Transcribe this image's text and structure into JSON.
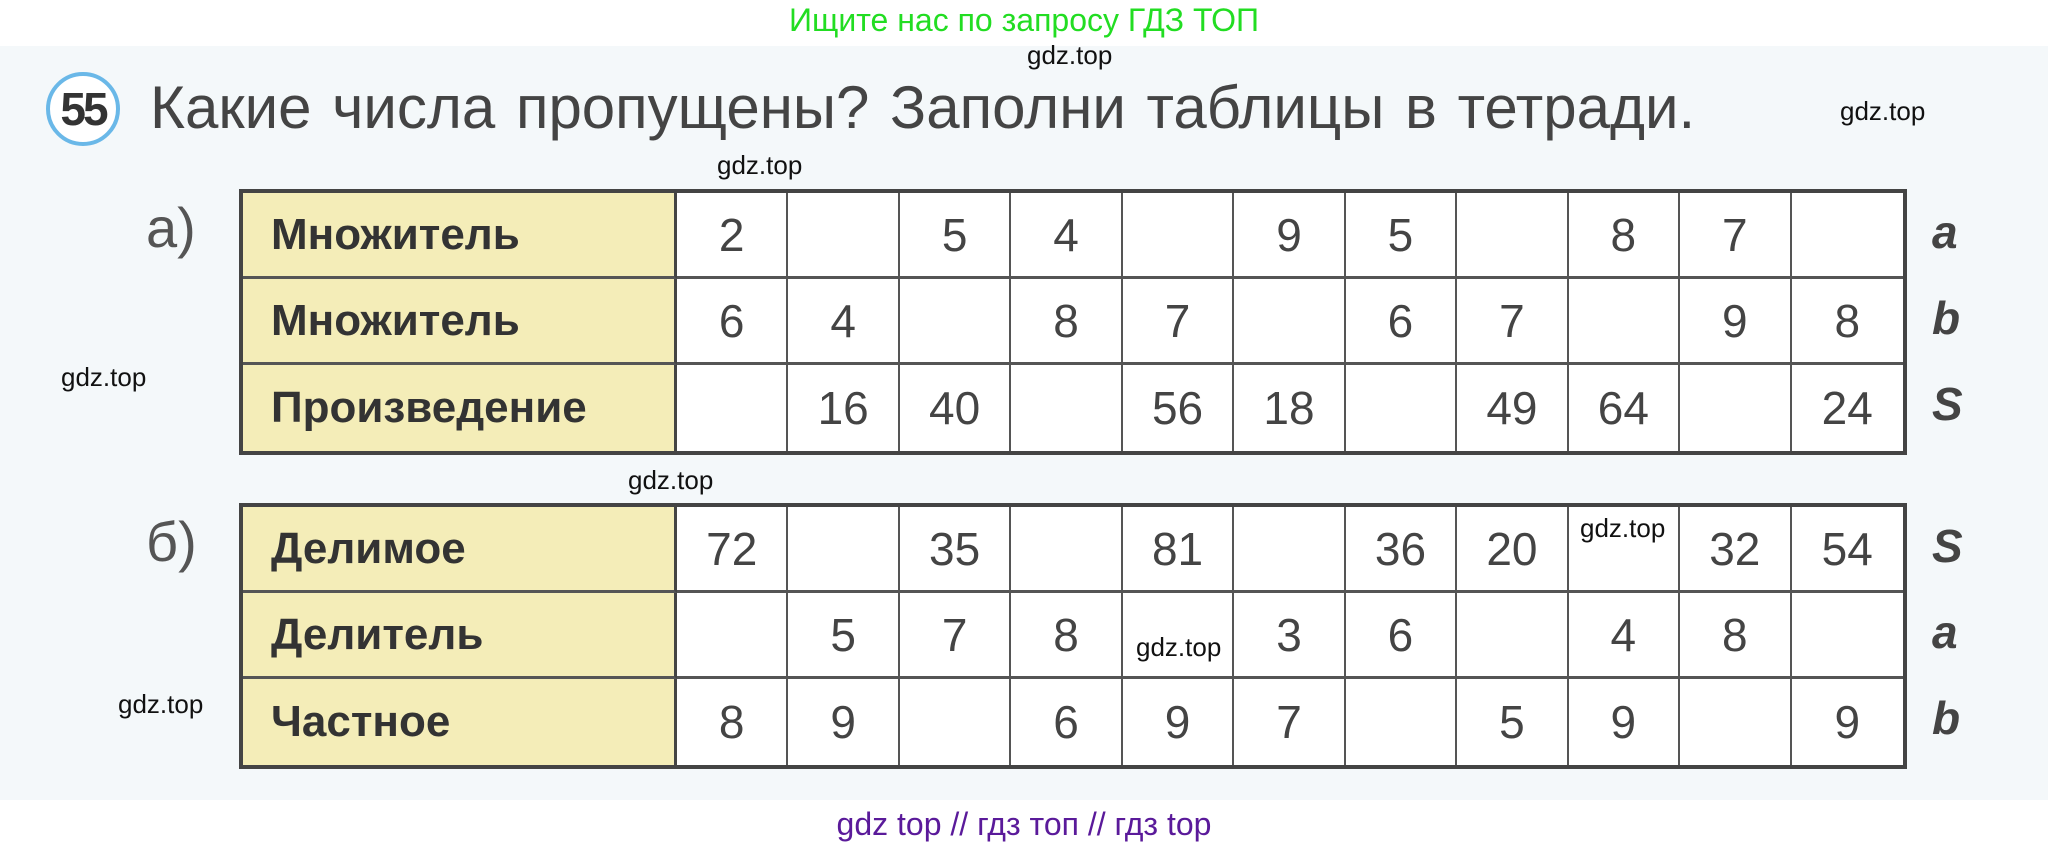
{
  "top_banner": "Ищите нас по запросу ГДЗ ТОП",
  "bottom_banner": "gdz top  //  гдз топ  //  гдз top",
  "exercise": {
    "number": "55",
    "title": "Какие числа пропущены? Заполни таблицы в тетради."
  },
  "watermarks": [
    "gdz.top",
    "gdz.top",
    "gdz.top",
    "gdz.top",
    "gdz.top",
    "gdz.top",
    "gdz.top",
    "gdz.top"
  ],
  "colors": {
    "header_fill": "#f4edb8",
    "banner_top": "#22dd22",
    "banner_bottom": "#5a1a9a",
    "badge_ring": "#6ab8e8"
  },
  "table_a": {
    "label": "а)",
    "rows": [
      {
        "header": "Множитель",
        "side": "a",
        "cells": [
          "2",
          "",
          "5",
          "4",
          "",
          "9",
          "5",
          "",
          "8",
          "7",
          ""
        ]
      },
      {
        "header": "Множитель",
        "side": "b",
        "cells": [
          "6",
          "4",
          "",
          "8",
          "7",
          "",
          "6",
          "7",
          "",
          "9",
          "8"
        ]
      },
      {
        "header": "Произведение",
        "side": "S",
        "cells": [
          "",
          "16",
          "40",
          "",
          "56",
          "18",
          "",
          "49",
          "64",
          "",
          "24"
        ]
      }
    ]
  },
  "table_b": {
    "label": "б)",
    "rows": [
      {
        "header": "Делимое",
        "side": "S",
        "cells": [
          "72",
          "",
          "35",
          "",
          "81",
          "",
          "36",
          "20",
          "",
          "32",
          "54"
        ]
      },
      {
        "header": "Делитель",
        "side": "a",
        "cells": [
          "",
          "5",
          "7",
          "8",
          "",
          "3",
          "6",
          "",
          "4",
          "8",
          ""
        ]
      },
      {
        "header": "Частное",
        "side": "b",
        "cells": [
          "8",
          "9",
          "",
          "6",
          "9",
          "7",
          "",
          "5",
          "9",
          "",
          "9"
        ]
      }
    ]
  }
}
